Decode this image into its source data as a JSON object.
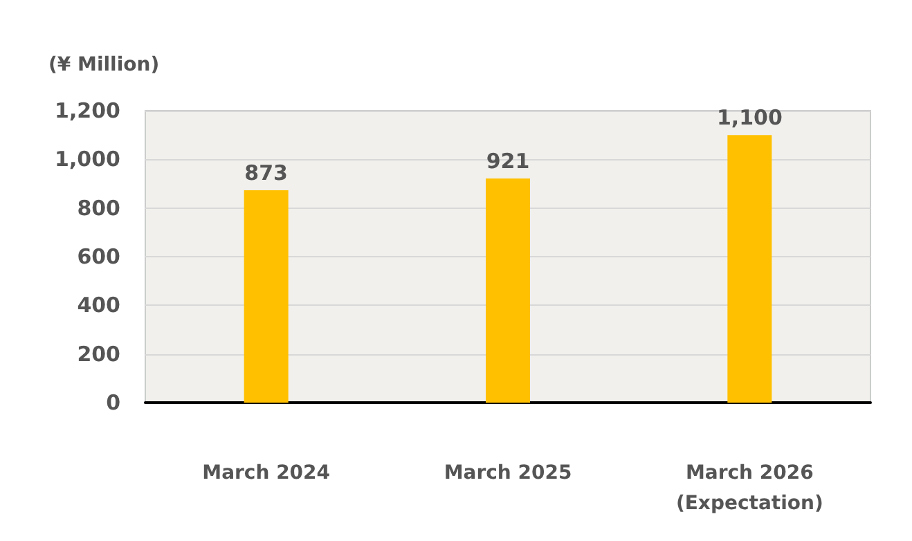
{
  "chart_data": {
    "type": "bar",
    "ylabel": "(¥ Million)",
    "categories": [
      "March 2024",
      "March 2025",
      "March 2026\n(Expectation)"
    ],
    "values": [
      873,
      921,
      1100
    ],
    "value_labels": [
      "873",
      "921",
      "1,100"
    ],
    "color": "#ffc000",
    "ylim": [
      0,
      1200
    ],
    "yticks": [
      0,
      200,
      400,
      600,
      800,
      {
        "value": 1000,
        "label": "1,000"
      },
      {
        "value": 1200,
        "label": "1,200"
      }
    ],
    "grid": "y"
  }
}
